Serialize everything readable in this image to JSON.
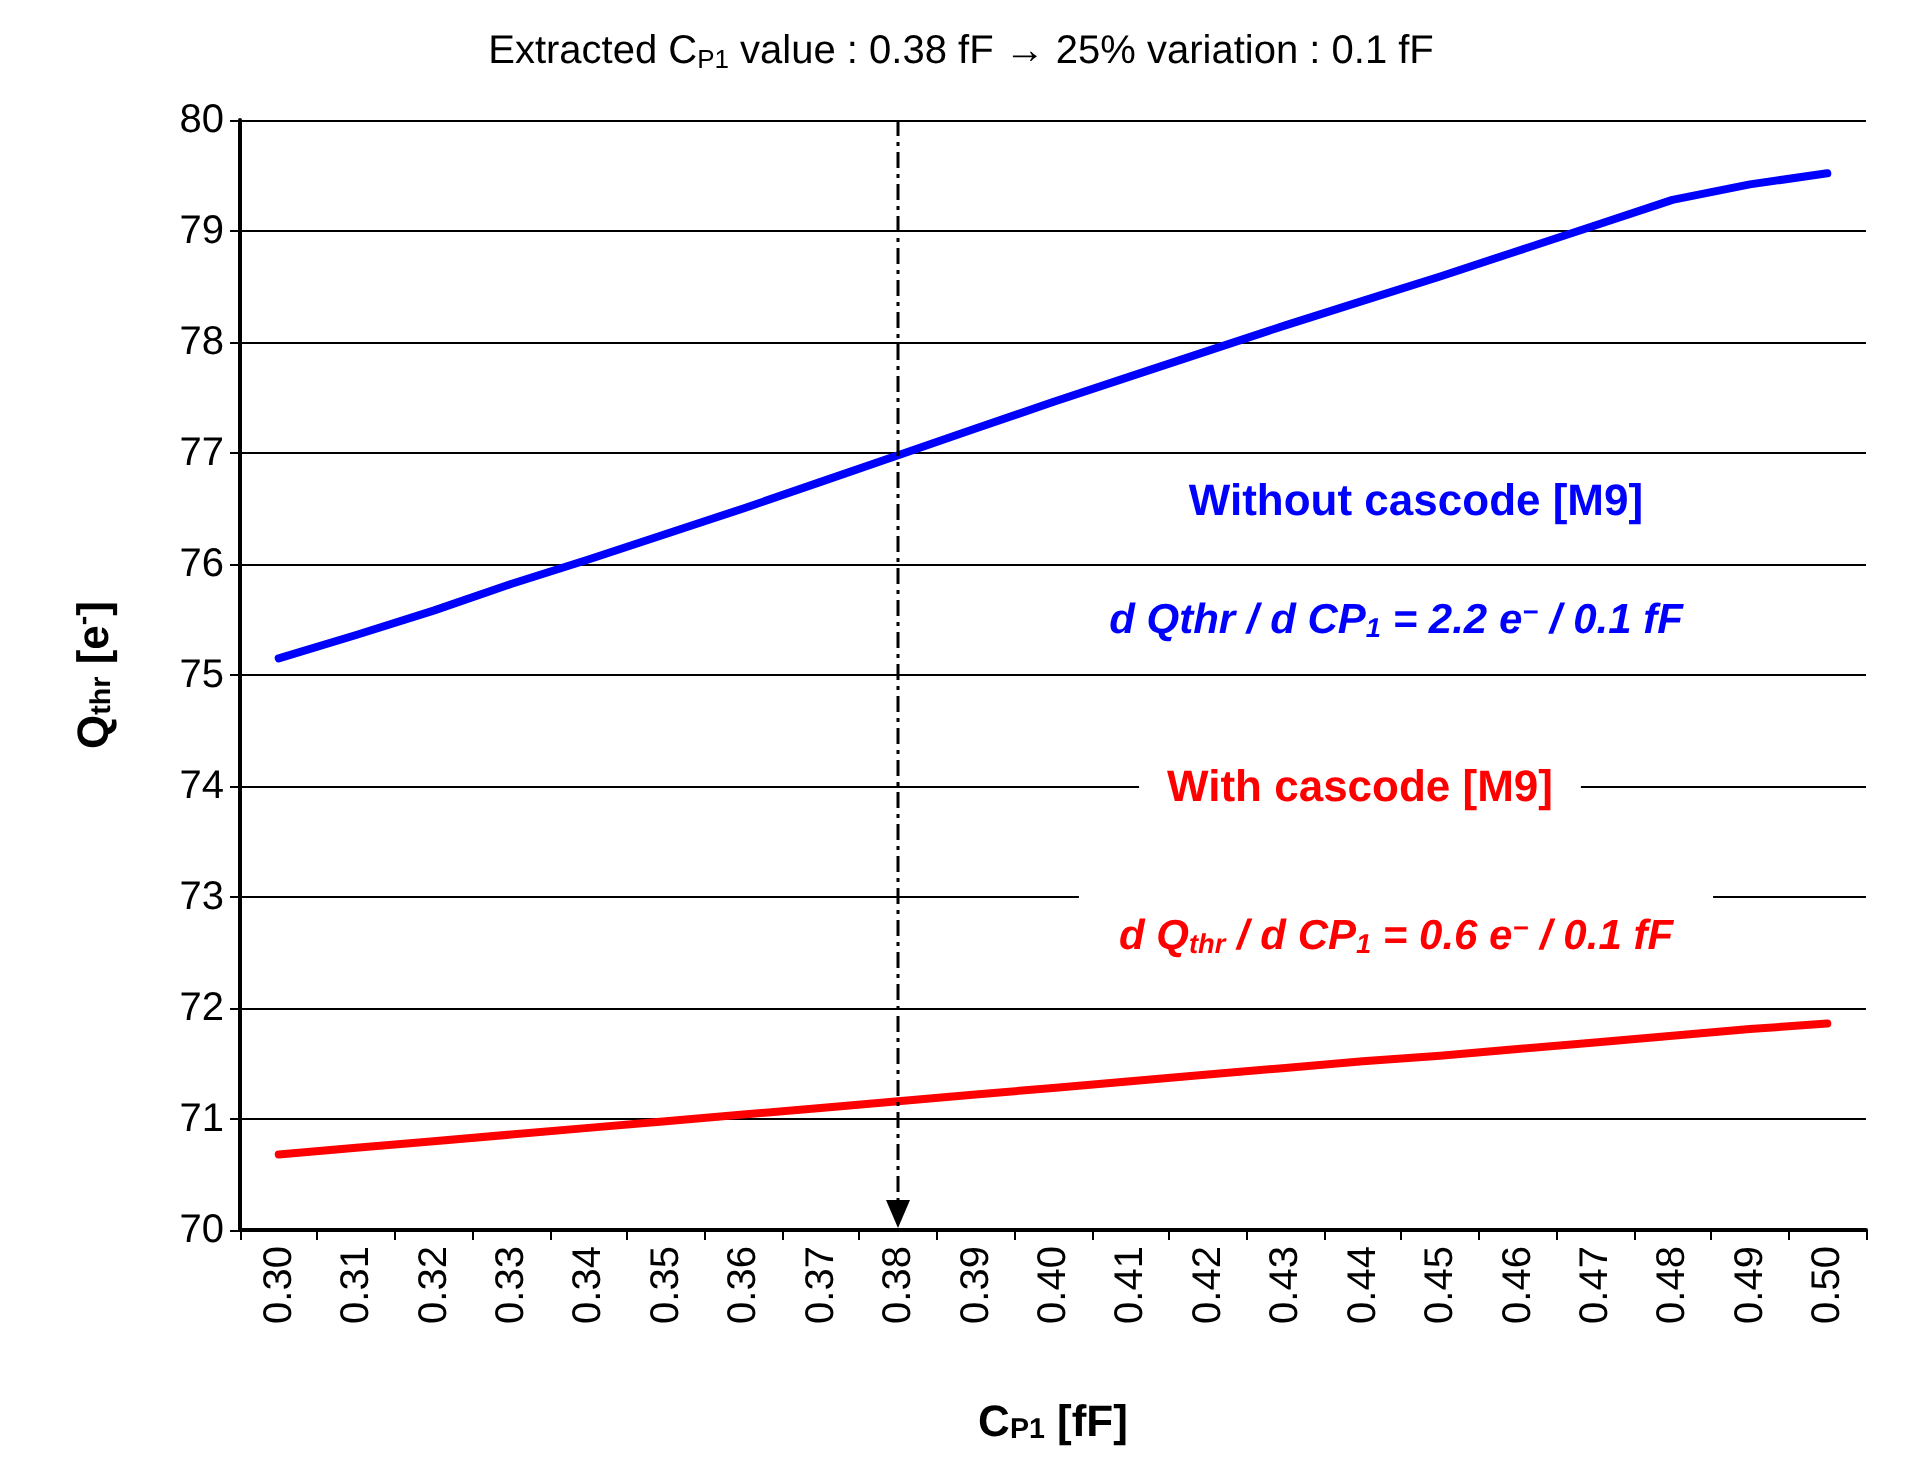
{
  "chart_data": {
    "type": "line",
    "title": "Extracted C$_{P1}$ value : 0.38 fF → 25% variation : 0.1 fF",
    "xlabel": "C$_{P1}$ [fF]",
    "ylabel": "Q$_{thr}$ [e$^{-}$]",
    "categories": [
      "0.30",
      "0.31",
      "0.32",
      "0.33",
      "0.34",
      "0.35",
      "0.36",
      "0.37",
      "0.38",
      "0.39",
      "0.40",
      "0.41",
      "0.42",
      "0.43",
      "0.44",
      "0.45",
      "0.46",
      "0.47",
      "0.48",
      "0.49",
      "0.50"
    ],
    "series": [
      {
        "name": "Without cascode [M9]",
        "color": "#0000ff",
        "values": [
          75.15,
          75.36,
          75.58,
          75.82,
          76.04,
          76.27,
          76.5,
          76.74,
          76.98,
          77.22,
          77.46,
          77.69,
          77.92,
          78.15,
          78.37,
          78.59,
          78.82,
          79.05,
          79.28,
          79.42,
          79.52
        ]
      },
      {
        "name": "With cascode [M9]",
        "color": "#ff0000",
        "values": [
          70.68,
          70.74,
          70.8,
          70.86,
          70.92,
          70.98,
          71.04,
          71.1,
          71.16,
          71.22,
          71.28,
          71.34,
          71.4,
          71.46,
          71.52,
          71.57,
          71.63,
          71.69,
          71.75,
          71.81,
          71.86
        ]
      }
    ],
    "annotations": [
      "d Qthr / d CP$_{1}$ = 2.2 e$^{−}$ / 0.1 fF",
      "d Q$_{thr}$ / d CP$_{1}$ = 0.6 e$^{−}$ / 0.1 fF"
    ],
    "ref_lines": [
      {
        "axis": "x",
        "value": "0.38",
        "line_style": "dashdot",
        "color": "#000000"
      }
    ],
    "ylim": [
      70,
      80
    ],
    "yticks": [
      70,
      71,
      72,
      73,
      74,
      75,
      76,
      77,
      78,
      79,
      80
    ],
    "grid": "y",
    "legend": false,
    "marker": "none",
    "line_style": "solid"
  }
}
